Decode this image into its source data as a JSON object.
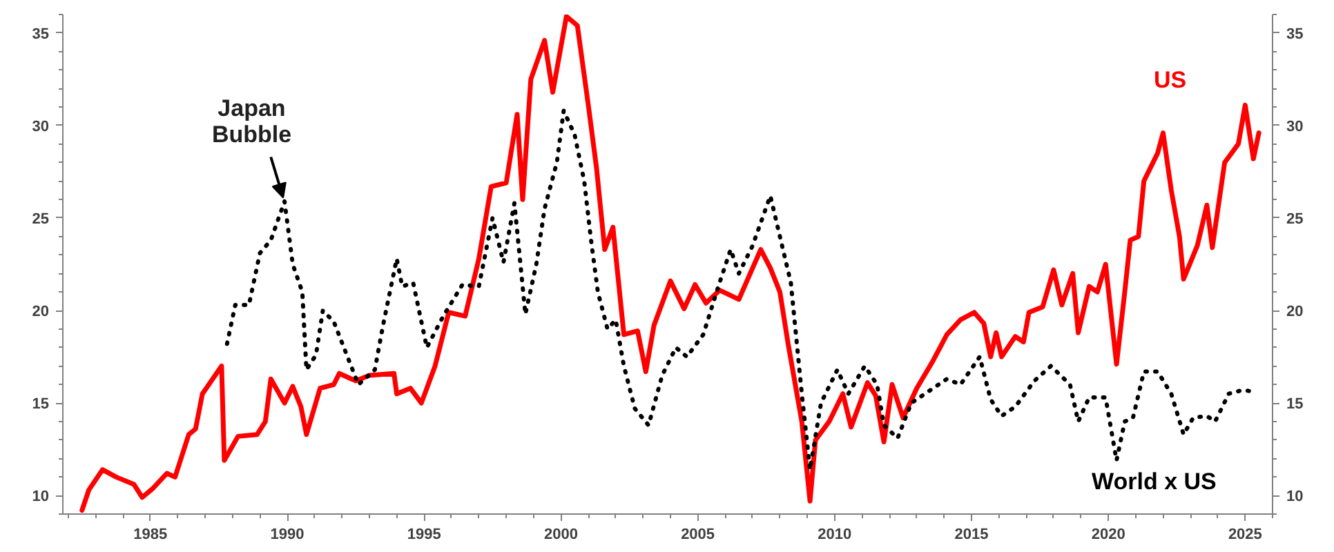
{
  "chart_data": {
    "type": "line",
    "xlim": [
      1981.8,
      2026.0
    ],
    "xticks": [
      1985,
      1990,
      1995,
      2000,
      2005,
      2010,
      2015,
      2020,
      2025
    ],
    "ylim": [
      9.0,
      36.0
    ],
    "yticks": [
      10,
      15,
      20,
      25,
      30,
      35
    ],
    "y2lim": [
      9.0,
      36.0
    ],
    "y2ticks": [
      10,
      15,
      20,
      25,
      30,
      35
    ],
    "grid": false,
    "annotations": [
      {
        "text": "Japan\nBubble",
        "x": 1989.9,
        "y": 25.9
      }
    ],
    "series": [
      {
        "name": "US",
        "color": "#ff0000",
        "line_style": "solid",
        "x": [
          1982.5,
          1982.75,
          1983.25,
          1983.75,
          1984.4,
          1984.7,
          1985.1,
          1985.6,
          1985.9,
          1986.4,
          1986.65,
          1986.9,
          1987.6,
          1987.7,
          1988.2,
          1988.9,
          1989.2,
          1989.4,
          1989.9,
          1990.2,
          1990.5,
          1990.7,
          1991.2,
          1991.7,
          1991.9,
          1992.5,
          1993.0,
          1993.9,
          1994.0,
          1994.5,
          1994.9,
          1995.4,
          1995.9,
          1996.5,
          1997.0,
          1997.45,
          1998.0,
          1998.4,
          1998.6,
          1998.9,
          1999.4,
          1999.7,
          2000.2,
          2000.6,
          2001.0,
          2001.3,
          2001.6,
          2001.9,
          2002.3,
          2002.8,
          2003.1,
          2003.4,
          2004.0,
          2004.5,
          2004.9,
          2005.3,
          2005.8,
          2006.5,
          2007.3,
          2007.65,
          2008.0,
          2008.3,
          2008.8,
          2009.1,
          2009.3,
          2009.8,
          2010.3,
          2010.6,
          2011.2,
          2011.5,
          2011.8,
          2012.1,
          2012.5,
          2013.0,
          2013.6,
          2014.1,
          2014.6,
          2015.1,
          2015.45,
          2015.7,
          2015.9,
          2016.1,
          2016.6,
          2016.9,
          2017.1,
          2017.6,
          2018.0,
          2018.3,
          2018.7,
          2018.9,
          2019.3,
          2019.6,
          2019.9,
          2020.3,
          2020.6,
          2020.8,
          2021.1,
          2021.3,
          2021.8,
          2022.0,
          2022.3,
          2022.6,
          2022.75,
          2023.25,
          2023.6,
          2023.8,
          2024.25,
          2024.75,
          2025.0,
          2025.3,
          2025.5
        ],
        "values": [
          9.2,
          10.3,
          11.4,
          11.0,
          10.6,
          9.9,
          10.4,
          11.2,
          11.0,
          13.3,
          13.6,
          15.5,
          17.0,
          11.9,
          13.2,
          13.3,
          14.0,
          16.3,
          15.0,
          15.9,
          14.8,
          13.3,
          15.8,
          16.0,
          16.6,
          16.2,
          16.5,
          16.6,
          15.5,
          15.8,
          15.0,
          17.0,
          19.9,
          19.7,
          22.8,
          26.7,
          26.9,
          30.6,
          26.0,
          32.5,
          34.6,
          31.8,
          35.9,
          35.4,
          31.1,
          27.7,
          23.3,
          24.5,
          18.7,
          18.9,
          16.7,
          19.2,
          21.6,
          20.1,
          21.4,
          20.4,
          21.1,
          20.6,
          23.3,
          22.3,
          21.0,
          18.2,
          14.0,
          9.7,
          13.0,
          14.0,
          15.5,
          13.7,
          16.1,
          15.4,
          12.9,
          16.0,
          14.2,
          15.8,
          17.3,
          18.7,
          19.5,
          19.9,
          19.3,
          17.5,
          18.8,
          17.5,
          18.6,
          18.3,
          19.9,
          20.2,
          22.2,
          20.3,
          22.0,
          18.8,
          21.3,
          21.0,
          22.5,
          17.1,
          21.0,
          23.8,
          24.0,
          27.0,
          28.5,
          29.6,
          26.5,
          24.0,
          21.7,
          23.5,
          25.7,
          23.4,
          28.0,
          29.0,
          31.1,
          28.2,
          29.6
        ]
      },
      {
        "name": "World x US",
        "color": "#000000",
        "line_style": "dotted",
        "x": [
          1987.8,
          1988.1,
          1988.6,
          1989.0,
          1989.4,
          1989.9,
          1990.2,
          1990.55,
          1990.7,
          1991.05,
          1991.3,
          1991.7,
          1992.2,
          1992.6,
          1993.2,
          1993.5,
          1994.0,
          1994.2,
          1994.6,
          1995.1,
          1995.7,
          1996.4,
          1997.0,
          1997.5,
          1997.9,
          1998.3,
          1998.7,
          1999.1,
          1999.4,
          1999.85,
          2000.1,
          2000.5,
          2000.85,
          2001.1,
          2001.35,
          2001.7,
          2002.0,
          2002.3,
          2002.7,
          2003.2,
          2003.7,
          2004.2,
          2004.6,
          2005.2,
          2005.75,
          2006.2,
          2006.5,
          2007.0,
          2007.65,
          2008.0,
          2008.4,
          2008.8,
          2009.1,
          2009.5,
          2010.1,
          2010.5,
          2011.1,
          2011.55,
          2011.8,
          2012.3,
          2012.8,
          2013.3,
          2014.1,
          2014.6,
          2015.3,
          2015.7,
          2016.1,
          2016.6,
          2017.3,
          2017.9,
          2018.6,
          2018.9,
          2019.3,
          2019.9,
          2020.3,
          2020.6,
          2020.9,
          2021.3,
          2021.8,
          2022.3,
          2022.75,
          2023.1,
          2023.6,
          2023.9,
          2024.4,
          2024.9,
          2025.4
        ],
        "values": [
          18.2,
          20.3,
          20.3,
          23.1,
          23.8,
          25.9,
          22.5,
          21.0,
          16.8,
          17.6,
          20.0,
          19.4,
          17.5,
          16.0,
          16.8,
          19.2,
          22.8,
          21.3,
          21.5,
          18.0,
          19.7,
          21.4,
          21.3,
          25.0,
          22.6,
          25.8,
          19.8,
          22.5,
          25.5,
          28.0,
          30.8,
          29.5,
          27.0,
          23.8,
          21.0,
          19.0,
          19.5,
          17.0,
          14.7,
          13.8,
          16.5,
          18.0,
          17.5,
          18.7,
          21.3,
          23.3,
          22.0,
          23.5,
          26.2,
          24.0,
          21.5,
          15.5,
          11.4,
          15.0,
          16.8,
          15.5,
          17.0,
          16.0,
          13.8,
          13.1,
          15.0,
          15.5,
          16.3,
          16.0,
          17.5,
          15.2,
          14.3,
          14.8,
          16.2,
          17.0,
          16.0,
          14.0,
          15.3,
          15.3,
          11.9,
          14.0,
          14.2,
          16.7,
          16.7,
          15.5,
          13.3,
          14.2,
          14.3,
          14.0,
          15.5,
          15.7,
          15.6
        ]
      }
    ]
  }
}
